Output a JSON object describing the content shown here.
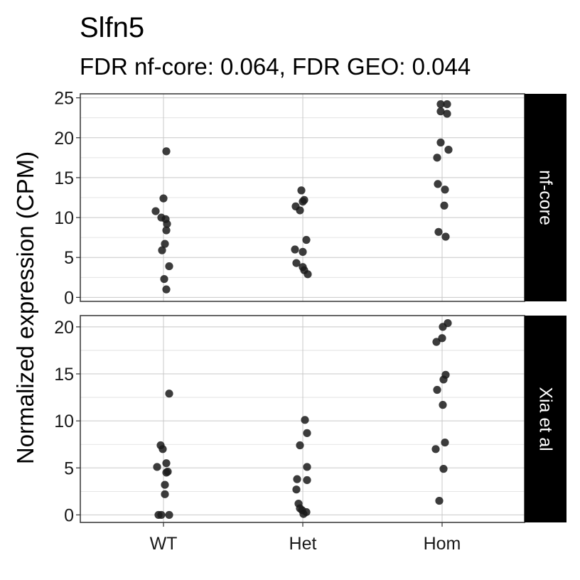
{
  "chart_data": {
    "type": "scatter",
    "title": "Slfn5",
    "subtitle": "FDR nf-core: 0.064, FDR GEO: 0.044",
    "ylabel": "Normalized expression (CPM)",
    "xlabel": "",
    "categories": [
      "WT",
      "Het",
      "Hom"
    ],
    "grid": true,
    "point_color": "#1a1a1a",
    "strip_color": "#000000",
    "panels": [
      {
        "label": "nf-core",
        "ylim": [
          -0.5,
          25.5
        ],
        "yticks": [
          0,
          5,
          10,
          15,
          20,
          25
        ],
        "points": [
          {
            "x": "WT",
            "y": 18.3,
            "j": 0.04
          },
          {
            "x": "WT",
            "y": 12.4,
            "j": 0.0
          },
          {
            "x": "WT",
            "y": 10.8,
            "j": -0.11
          },
          {
            "x": "WT",
            "y": 10.0,
            "j": -0.03
          },
          {
            "x": "WT",
            "y": 9.8,
            "j": 0.03
          },
          {
            "x": "WT",
            "y": 9.2,
            "j": 0.05
          },
          {
            "x": "WT",
            "y": 8.4,
            "j": 0.04
          },
          {
            "x": "WT",
            "y": 6.7,
            "j": 0.02
          },
          {
            "x": "WT",
            "y": 5.9,
            "j": -0.02
          },
          {
            "x": "WT",
            "y": 3.9,
            "j": 0.08
          },
          {
            "x": "WT",
            "y": 2.3,
            "j": 0.01
          },
          {
            "x": "WT",
            "y": 1.0,
            "j": 0.04
          },
          {
            "x": "Het",
            "y": 13.4,
            "j": -0.02
          },
          {
            "x": "Het",
            "y": 12.2,
            "j": 0.02
          },
          {
            "x": "Het",
            "y": 12.0,
            "j": 0.0
          },
          {
            "x": "Het",
            "y": 11.4,
            "j": -0.1
          },
          {
            "x": "Het",
            "y": 10.9,
            "j": -0.04
          },
          {
            "x": "Het",
            "y": 7.2,
            "j": 0.05
          },
          {
            "x": "Het",
            "y": 6.0,
            "j": -0.11
          },
          {
            "x": "Het",
            "y": 5.7,
            "j": 0.0
          },
          {
            "x": "Het",
            "y": 4.3,
            "j": -0.09
          },
          {
            "x": "Het",
            "y": 3.8,
            "j": 0.0
          },
          {
            "x": "Het",
            "y": 3.4,
            "j": 0.02
          },
          {
            "x": "Het",
            "y": 2.9,
            "j": 0.07
          },
          {
            "x": "Hom",
            "y": 24.2,
            "j": -0.02
          },
          {
            "x": "Hom",
            "y": 24.2,
            "j": 0.07
          },
          {
            "x": "Hom",
            "y": 23.3,
            "j": -0.02
          },
          {
            "x": "Hom",
            "y": 23.0,
            "j": 0.07
          },
          {
            "x": "Hom",
            "y": 19.4,
            "j": -0.02
          },
          {
            "x": "Hom",
            "y": 18.5,
            "j": 0.09
          },
          {
            "x": "Hom",
            "y": 17.5,
            "j": -0.07
          },
          {
            "x": "Hom",
            "y": 14.2,
            "j": -0.06
          },
          {
            "x": "Hom",
            "y": 13.5,
            "j": 0.04
          },
          {
            "x": "Hom",
            "y": 11.5,
            "j": 0.03
          },
          {
            "x": "Hom",
            "y": 8.2,
            "j": -0.05
          },
          {
            "x": "Hom",
            "y": 7.6,
            "j": 0.05
          }
        ]
      },
      {
        "label": "Xia et al",
        "ylim": [
          -0.8,
          21.2
        ],
        "yticks": [
          0,
          5,
          10,
          15,
          20
        ],
        "points": [
          {
            "x": "WT",
            "y": 12.9,
            "j": 0.08
          },
          {
            "x": "WT",
            "y": 7.4,
            "j": -0.04
          },
          {
            "x": "WT",
            "y": 7.0,
            "j": -0.01
          },
          {
            "x": "WT",
            "y": 5.5,
            "j": 0.04
          },
          {
            "x": "WT",
            "y": 5.1,
            "j": -0.09
          },
          {
            "x": "WT",
            "y": 4.6,
            "j": 0.06
          },
          {
            "x": "WT",
            "y": 4.5,
            "j": 0.04
          },
          {
            "x": "WT",
            "y": 3.2,
            "j": 0.02
          },
          {
            "x": "WT",
            "y": 2.2,
            "j": 0.02
          },
          {
            "x": "WT",
            "y": 0.0,
            "j": -0.07
          },
          {
            "x": "WT",
            "y": 0.0,
            "j": -0.03
          },
          {
            "x": "WT",
            "y": 0.0,
            "j": 0.08
          },
          {
            "x": "Het",
            "y": 10.1,
            "j": 0.03
          },
          {
            "x": "Het",
            "y": 8.7,
            "j": 0.06
          },
          {
            "x": "Het",
            "y": 7.4,
            "j": -0.04
          },
          {
            "x": "Het",
            "y": 5.1,
            "j": 0.06
          },
          {
            "x": "Het",
            "y": 3.8,
            "j": -0.08
          },
          {
            "x": "Het",
            "y": 3.7,
            "j": 0.06
          },
          {
            "x": "Het",
            "y": 2.7,
            "j": -0.09
          },
          {
            "x": "Het",
            "y": 1.2,
            "j": -0.06
          },
          {
            "x": "Het",
            "y": 0.7,
            "j": -0.04
          },
          {
            "x": "Het",
            "y": 0.5,
            "j": -0.01
          },
          {
            "x": "Het",
            "y": 0.3,
            "j": 0.05
          },
          {
            "x": "Het",
            "y": 0.1,
            "j": 0.01
          },
          {
            "x": "Hom",
            "y": 20.4,
            "j": 0.08
          },
          {
            "x": "Hom",
            "y": 20.0,
            "j": 0.01
          },
          {
            "x": "Hom",
            "y": 18.8,
            "j": 0.0
          },
          {
            "x": "Hom",
            "y": 18.4,
            "j": -0.08
          },
          {
            "x": "Hom",
            "y": 14.9,
            "j": 0.05
          },
          {
            "x": "Hom",
            "y": 14.4,
            "j": 0.02
          },
          {
            "x": "Hom",
            "y": 13.3,
            "j": -0.07
          },
          {
            "x": "Hom",
            "y": 11.7,
            "j": 0.01
          },
          {
            "x": "Hom",
            "y": 7.7,
            "j": 0.04
          },
          {
            "x": "Hom",
            "y": 7.0,
            "j": -0.09
          },
          {
            "x": "Hom",
            "y": 4.9,
            "j": 0.02
          },
          {
            "x": "Hom",
            "y": 1.5,
            "j": -0.04
          }
        ]
      }
    ]
  }
}
